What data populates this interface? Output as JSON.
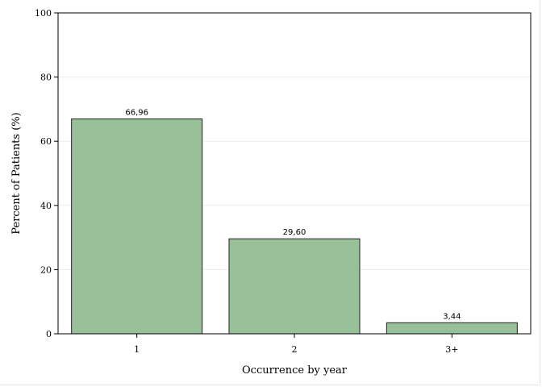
{
  "chart_data": {
    "type": "bar",
    "categories": [
      "1",
      "2",
      "3+"
    ],
    "values": [
      66.96,
      29.6,
      3.44
    ],
    "value_labels": [
      "66,96",
      "29,60",
      "3,44"
    ],
    "xlabel": "Occurrence by year",
    "ylabel": "Percent of Patients (%)",
    "ylim": [
      0,
      100
    ],
    "yticks": [
      0,
      20,
      40,
      60,
      80,
      100
    ],
    "bar_color": "#99c199",
    "bar_edge_color": "#222222",
    "grid": true,
    "grid_color": "#ececec"
  }
}
